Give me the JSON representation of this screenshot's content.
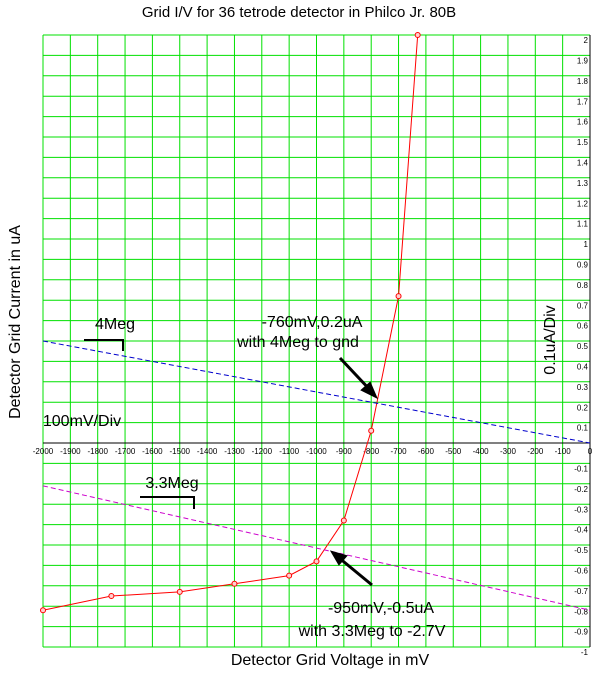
{
  "chart_data": {
    "type": "line",
    "title": "Grid I/V for 36 tetrode detector in Philco Jr. 80B",
    "x_label": "Detector Grid Voltage in mV",
    "y_label": "Detector Grid Current in uA",
    "xlim": [
      -2000,
      0
    ],
    "ylim": [
      -1,
      2
    ],
    "xticks": [
      -2000,
      -1900,
      -1800,
      -1700,
      -1600,
      -1500,
      -1400,
      -1300,
      -1200,
      -1100,
      -1000,
      -900,
      -800,
      -700,
      -600,
      -500,
      -400,
      -300,
      -200,
      -100,
      0
    ],
    "yticks": [
      2,
      1.9,
      1.8,
      1.7,
      1.6,
      1.5,
      1.4,
      1.3,
      1.2,
      1.1,
      1,
      0.9,
      0.8,
      0.7,
      0.6,
      0.5,
      0.4,
      0.3,
      0.2,
      0.1,
      -0.1,
      -0.2,
      -0.3,
      -0.4,
      -0.5,
      -0.6,
      -0.7,
      -0.8,
      -0.9,
      -1
    ],
    "grid": true,
    "grid_color": "#00e000",
    "series": [
      {
        "color": "#ff0000",
        "dash": false,
        "markers": true,
        "x": [
          -2000,
          -1750,
          -1500,
          -1300,
          -1100,
          -1000,
          -900,
          -800,
          -700,
          -630
        ],
        "values": [
          -0.82,
          -0.75,
          -0.73,
          -0.69,
          -0.65,
          -0.58,
          -0.38,
          0.06,
          0.72,
          2
        ]
      },
      {
        "color": "#0000cc",
        "dash": true,
        "markers": false,
        "x": [
          -2000,
          0
        ],
        "values": [
          0.5,
          0
        ]
      },
      {
        "color": "#cc00cc",
        "dash": true,
        "markers": false,
        "x": [
          -2000,
          0
        ],
        "values": [
          -0.21,
          -0.82
        ]
      }
    ],
    "annotations": [
      "4Meg",
      "-760mV,0.2uA",
      "with 4Meg to gnd",
      "100mV/Div",
      "0.1uA/Div",
      "3.3Meg",
      "-950mV,-0.5uA",
      "with 3.3Meg to -2.7V"
    ]
  }
}
